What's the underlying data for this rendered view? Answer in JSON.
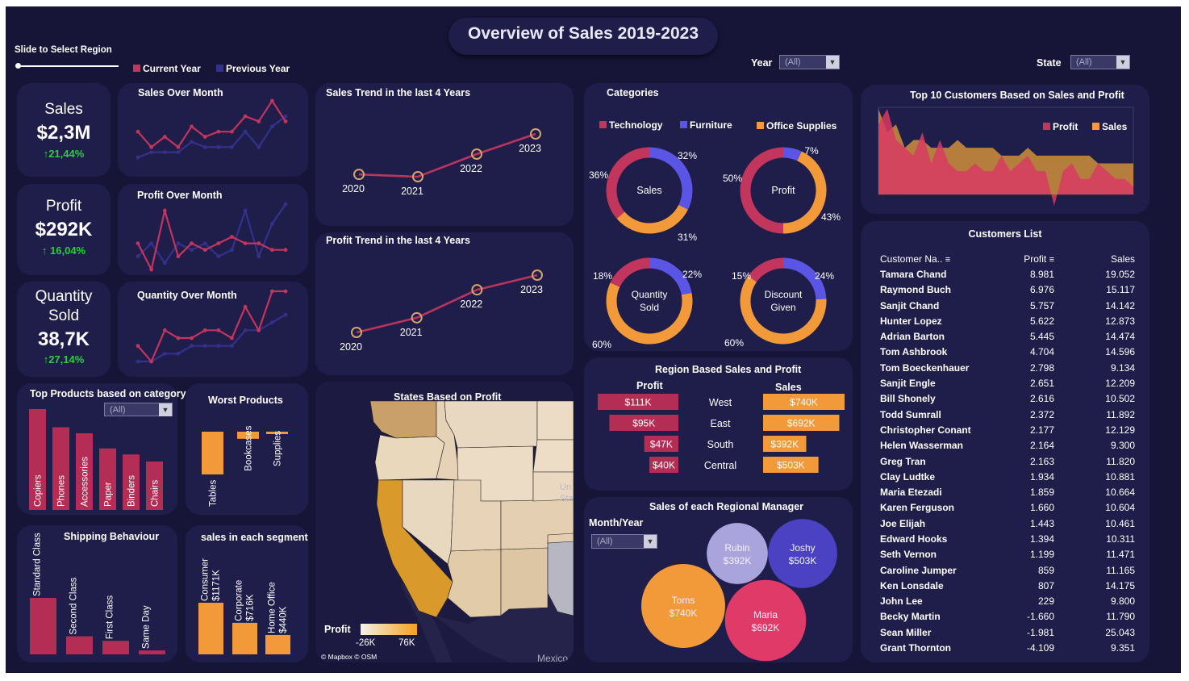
{
  "header": {
    "title": "Overview of Sales 2019-2023"
  },
  "filters": {
    "slider_label": "Slide to Select Region",
    "year_label": "Year",
    "year_value": "(All)",
    "state_label": "State",
    "state_value": "(All)",
    "month_year_label": "Month/Year",
    "month_year_value": "(All)",
    "category_value": "(All)"
  },
  "legend_year": {
    "current": "Current Year",
    "previous": "Previous Year"
  },
  "colors": {
    "bg": "#161538",
    "card": "#1f1d4a",
    "current": "#c2355d",
    "previous": "#34318c",
    "technology": "#c2355d",
    "furniture": "#5b55e6",
    "office": "#f2993a",
    "trend": "#b8355e",
    "marker": "#d6a46a"
  },
  "kpis": [
    {
      "label": "Sales",
      "value": "$2,3M",
      "change": "21,44%"
    },
    {
      "label": "Profit",
      "value": "$292K",
      "change": "16,04%"
    },
    {
      "label_line1": "Quantity",
      "label_line2": "Sold",
      "value": "38,7K",
      "change": "27,14%"
    }
  ],
  "chart_data": [
    {
      "type": "line",
      "title": "Sales Over Month",
      "series": [
        {
          "name": "Current Year",
          "values": [
            6,
            3,
            5,
            3,
            7,
            5,
            6,
            6,
            9,
            8,
            12,
            8
          ]
        },
        {
          "name": "Previous Year",
          "values": [
            1,
            2,
            2,
            2,
            4,
            3,
            3,
            3,
            6,
            3,
            7,
            9
          ]
        }
      ]
    },
    {
      "type": "line",
      "title": "Profit Over Month",
      "series": [
        {
          "name": "Current Year",
          "values": [
            4,
            0,
            9,
            2,
            4,
            3,
            4,
            5,
            4,
            4,
            3,
            3
          ]
        },
        {
          "name": "Previous Year",
          "values": [
            2,
            4,
            1,
            4,
            3,
            4,
            2,
            3,
            9,
            2,
            7,
            10
          ]
        }
      ]
    },
    {
      "type": "line",
      "title": "Quantity Over Month",
      "series": [
        {
          "name": "Current Year",
          "values": [
            3,
            1,
            5,
            4,
            4,
            5,
            5,
            4,
            8,
            5,
            10,
            10
          ]
        },
        {
          "name": "Previous Year",
          "values": [
            1,
            1,
            2,
            2,
            3,
            3,
            3,
            3,
            5,
            5,
            6,
            7
          ]
        }
      ]
    },
    {
      "type": "line",
      "title": "Sales Trend in the last 4 Years",
      "x": [
        "2020",
        "2021",
        "2022",
        "2023"
      ],
      "values": [
        484,
        470,
        609,
        733
      ]
    },
    {
      "type": "line",
      "title": "Profit Trend in the last 4 Years",
      "x": [
        "2020",
        "2021",
        "2022",
        "2023"
      ],
      "values": [
        50,
        61,
        82,
        93
      ]
    },
    {
      "type": "pie",
      "title": "Categories",
      "legend": [
        "Technology",
        "Furniture",
        "Office Supplies"
      ],
      "donuts": [
        {
          "name": "Sales",
          "values": [
            36,
            32,
            31
          ],
          "labels": [
            "36%",
            "32%",
            "31%"
          ]
        },
        {
          "name": "Profit",
          "values": [
            50,
            7,
            43
          ],
          "labels": [
            "50%",
            "7%",
            "43%"
          ]
        },
        {
          "name_line1": "Quantity",
          "name_line2": "Sold",
          "values": [
            18,
            22,
            60
          ],
          "labels": [
            "18%",
            "22%",
            "60%"
          ]
        },
        {
          "name_line1": "Discount",
          "name_line2": "Given",
          "values": [
            15,
            24,
            60
          ],
          "labels": [
            "15%",
            "24%",
            "60%"
          ]
        }
      ]
    },
    {
      "type": "area",
      "title": "Top 10 Customers Based on Sales and Profit",
      "legend": [
        "Profit",
        "Sales"
      ],
      "series": [
        {
          "name": "Profit",
          "values": [
            9,
            11,
            7,
            6,
            5,
            8,
            4,
            7,
            4,
            3,
            3,
            4,
            3,
            3,
            5,
            3,
            4,
            5,
            3,
            3,
            1,
            3,
            4,
            2,
            2,
            4,
            3,
            2,
            2,
            1
          ]
        },
        {
          "name": "Sales",
          "values": [
            11,
            8,
            9,
            6,
            7,
            7,
            6,
            6,
            6,
            7,
            6,
            6,
            6,
            6,
            5,
            5,
            5,
            6,
            5,
            5,
            5,
            5,
            5,
            5,
            5,
            4,
            4,
            4,
            4,
            4
          ]
        }
      ]
    },
    {
      "type": "bar",
      "title": "Top Products based on category",
      "categories": [
        "Copiers",
        "Phones",
        "Accessories",
        "Paper",
        "Binders",
        "Chairs"
      ],
      "values": [
        100,
        82,
        76,
        61,
        55,
        48
      ]
    },
    {
      "type": "bar",
      "title": "Worst Products",
      "categories": [
        "Tables",
        "Bookcases",
        "Supplies"
      ],
      "values": [
        -18,
        -3,
        -1
      ]
    },
    {
      "type": "bar",
      "title": "Shipping Behaviour",
      "categories": [
        "Standard Class",
        "Second Class",
        "First Class",
        "Same Day"
      ],
      "values": [
        100,
        32,
        24,
        7
      ]
    },
    {
      "type": "bar",
      "title": "sales in each segment",
      "categories": [
        "Consumer",
        "Corporate",
        "Home Office"
      ],
      "value_labels": [
        "$1171K",
        "$716K",
        "$440K"
      ],
      "values": [
        1171,
        716,
        440
      ]
    },
    {
      "type": "bar",
      "title": "Region Based Sales and Profit",
      "profit_label": "Profit",
      "sales_label": "Sales",
      "categories": [
        "West",
        "East",
        "South",
        "Central"
      ],
      "profit": [
        111,
        95,
        47,
        40
      ],
      "profit_labels": [
        "$111K",
        "$95K",
        "$47K",
        "$40K"
      ],
      "sales": [
        740,
        692,
        392,
        503
      ],
      "sales_labels": [
        "$740K",
        "$692K",
        "$392K",
        "$503K"
      ]
    },
    {
      "type": "scatter",
      "title": "Sales of each Regional Manager",
      "points": [
        {
          "name": "Rubin",
          "value": 392,
          "label": "$392K",
          "color": "#a9a4dc"
        },
        {
          "name": "Joshy",
          "value": 503,
          "label": "$503K",
          "color": "#4a42c2"
        },
        {
          "name": "Toms",
          "value": 740,
          "label": "$740K",
          "color": "#f2993a"
        },
        {
          "name": "Maria",
          "value": 692,
          "label": "$692K",
          "color": "#df3a68"
        }
      ]
    }
  ],
  "map": {
    "title": "States Based on Profit",
    "legend_label": "Profit",
    "legend_min": "-26K",
    "legend_max": "76K",
    "attribution": "© Mapbox © OSM",
    "mexico_label": "Mexico",
    "partial_labels": [
      "Un",
      "Sta"
    ]
  },
  "customers": {
    "title": "Customers List",
    "headers": [
      "Customer Na..",
      "Profit",
      "Sales"
    ],
    "rows": [
      [
        "Tamara Chand",
        "8.981",
        "19.052"
      ],
      [
        "Raymond Buch",
        "6.976",
        "15.117"
      ],
      [
        "Sanjit Chand",
        "5.757",
        "14.142"
      ],
      [
        "Hunter Lopez",
        "5.622",
        "12.873"
      ],
      [
        "Adrian Barton",
        "5.445",
        "14.474"
      ],
      [
        "Tom Ashbrook",
        "4.704",
        "14.596"
      ],
      [
        "Tom Boeckenhauer",
        "2.798",
        "9.134"
      ],
      [
        "Sanjit Engle",
        "2.651",
        "12.209"
      ],
      [
        "Bill Shonely",
        "2.616",
        "10.502"
      ],
      [
        "Todd Sumrall",
        "2.372",
        "11.892"
      ],
      [
        "Christopher Conant",
        "2.177",
        "12.129"
      ],
      [
        "Helen Wasserman",
        "2.164",
        "9.300"
      ],
      [
        "Greg Tran",
        "2.163",
        "11.820"
      ],
      [
        "Clay Ludtke",
        "1.934",
        "10.881"
      ],
      [
        "Maria Etezadi",
        "1.859",
        "10.664"
      ],
      [
        "Karen Ferguson",
        "1.660",
        "10.604"
      ],
      [
        "Joe Elijah",
        "1.443",
        "10.461"
      ],
      [
        "Edward Hooks",
        "1.394",
        "10.311"
      ],
      [
        "Seth Vernon",
        "1.199",
        "11.471"
      ],
      [
        "Caroline Jumper",
        "859",
        "11.165"
      ],
      [
        "Ken Lonsdale",
        "807",
        "14.175"
      ],
      [
        "John Lee",
        "229",
        "9.800"
      ],
      [
        "Becky Martin",
        "-1.660",
        "11.790"
      ],
      [
        "Sean Miller",
        "-1.981",
        "25.043"
      ],
      [
        "Grant Thornton",
        "-4.109",
        "9.351"
      ]
    ]
  }
}
